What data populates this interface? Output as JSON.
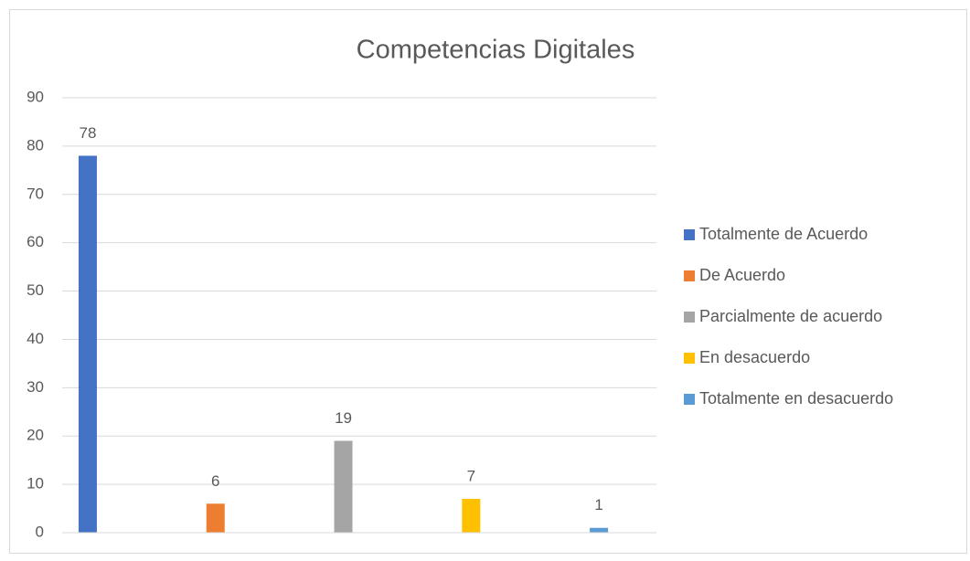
{
  "chart_data": {
    "type": "bar",
    "title": "Competencias Digitales",
    "categories": [
      null
    ],
    "series": [
      {
        "name": "Totalmente de Acuerdo",
        "color": "#4472c4",
        "values": [
          78
        ]
      },
      {
        "name": "De Acuerdo",
        "color": "#ed7d31",
        "values": [
          6
        ]
      },
      {
        "name": "Parcialmente de acuerdo",
        "color": "#a5a5a5",
        "values": [
          19
        ]
      },
      {
        "name": "En desacuerdo",
        "color": "#ffc000",
        "values": [
          7
        ]
      },
      {
        "name": "Totalmente en desacuerdo",
        "color": "#5b9bd5",
        "values": [
          1
        ]
      }
    ],
    "ylim": [
      0,
      90
    ],
    "yticks": [
      0,
      10,
      20,
      30,
      40,
      50,
      60,
      70,
      80,
      90
    ],
    "grid": true,
    "legend": "right"
  }
}
